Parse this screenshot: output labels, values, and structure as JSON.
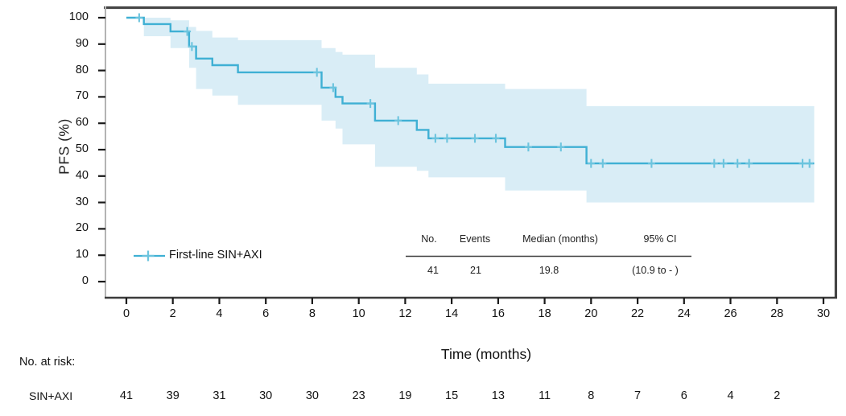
{
  "figure": {
    "inset_table": {
      "headers": [
        "No.",
        "Events",
        "Median (months)",
        "95% CI"
      ],
      "values": [
        "41",
        "21",
        "19.8",
        "(10.9 to - )"
      ]
    },
    "at_risk": {
      "title": "No. at risk:",
      "row_label": "SIN+AXI",
      "values": [
        "41",
        "39",
        "31",
        "30",
        "30",
        "23",
        "19",
        "15",
        "13",
        "11",
        "8",
        "7",
        "6",
        "4",
        "2"
      ]
    }
  },
  "chart_data": {
    "type": "line",
    "subtype": "kaplan-meier-step",
    "title": "",
    "xlabel": "Time (months)",
    "ylabel": "PFS (%)",
    "xlim": [
      0,
      30
    ],
    "ylim": [
      0,
      100
    ],
    "grid": false,
    "legend_position": "inside-bottom-left",
    "x_ticks": [
      0,
      2,
      4,
      6,
      8,
      10,
      12,
      14,
      16,
      18,
      20,
      22,
      24,
      26,
      28,
      30
    ],
    "y_ticks": [
      0,
      10,
      20,
      30,
      40,
      50,
      60,
      70,
      80,
      90,
      100
    ],
    "series": [
      {
        "name": "First-line SIN+AXI",
        "n": 41,
        "events": 21,
        "median_months": 19.8,
        "ci_95": "(10.9 to - )",
        "end_time": 29.6,
        "survival_steps": [
          [
            0,
            100
          ],
          [
            0.75,
            97.6
          ],
          [
            1.9,
            94.8
          ],
          [
            2.7,
            89.1
          ],
          [
            3.0,
            84.5
          ],
          [
            3.7,
            82.0
          ],
          [
            4.8,
            79.3
          ],
          [
            8.4,
            73.5
          ],
          [
            9.0,
            70.0
          ],
          [
            9.3,
            67.5
          ],
          [
            10.7,
            61.0
          ],
          [
            12.5,
            57.5
          ],
          [
            13.0,
            54.3
          ],
          [
            16.3,
            51.0
          ],
          [
            19.8,
            44.8
          ]
        ],
        "censor_marks": [
          [
            0.55,
            100
          ],
          [
            2.62,
            94.8
          ],
          [
            2.82,
            89.1
          ],
          [
            8.2,
            79.3
          ],
          [
            8.9,
            73.5
          ],
          [
            10.5,
            67.5
          ],
          [
            11.7,
            61.0
          ],
          [
            13.3,
            54.3
          ],
          [
            13.8,
            54.3
          ],
          [
            15.0,
            54.3
          ],
          [
            15.9,
            54.3
          ],
          [
            17.3,
            51.0
          ],
          [
            18.7,
            51.0
          ],
          [
            20.0,
            44.8
          ],
          [
            20.5,
            44.8
          ],
          [
            22.6,
            44.8
          ],
          [
            25.3,
            44.8
          ],
          [
            25.7,
            44.8
          ],
          [
            26.3,
            44.8
          ],
          [
            26.8,
            44.8
          ],
          [
            29.1,
            44.8
          ],
          [
            29.4,
            44.8
          ]
        ],
        "ci_band": [
          [
            0.75,
            100,
            93
          ],
          [
            1.9,
            99,
            88.5
          ],
          [
            2.7,
            96.5,
            81
          ],
          [
            3.0,
            95,
            73
          ],
          [
            3.7,
            92.5,
            70.5
          ],
          [
            4.8,
            91.5,
            67
          ],
          [
            8.4,
            88.5,
            61
          ],
          [
            9.0,
            87,
            58
          ],
          [
            9.3,
            86,
            52
          ],
          [
            10.7,
            81,
            43.5
          ],
          [
            12.5,
            78.5,
            42
          ],
          [
            13.0,
            75,
            39.5
          ],
          [
            16.3,
            73,
            34.5
          ],
          [
            19.8,
            66.5,
            30
          ]
        ]
      }
    ],
    "at_risk": {
      "label": "No. at risk:",
      "rows": [
        {
          "name": "SIN+AXI",
          "times": [
            0,
            2,
            4,
            6,
            8,
            10,
            12,
            14,
            16,
            18,
            20,
            22,
            24,
            26,
            28
          ],
          "counts": [
            41,
            39,
            31,
            30,
            30,
            23,
            19,
            15,
            13,
            11,
            8,
            7,
            6,
            4,
            2
          ]
        }
      ]
    }
  },
  "colors": {
    "curve": "#3fb0d4",
    "censor": "#6cc4de",
    "ci_band": "#d9edf6",
    "axis_dark": "#454545",
    "axis_light": "#b3b3b3",
    "tick": "#1a1a1a",
    "rule": "#3c3c3c",
    "background": "#ffffff"
  }
}
